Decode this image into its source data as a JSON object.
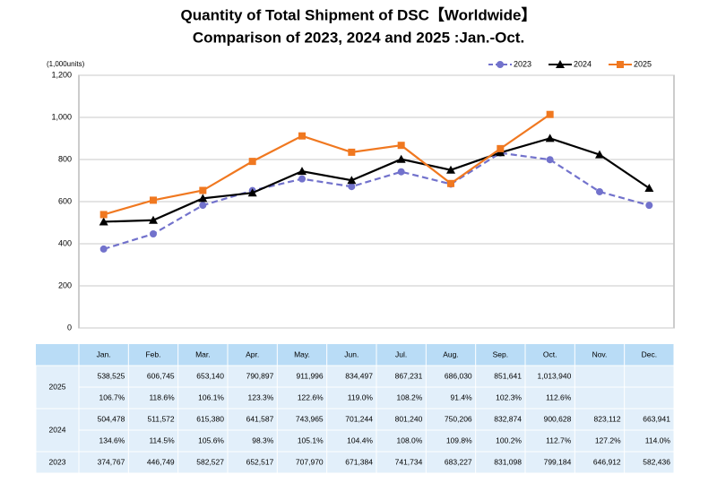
{
  "chart_data": {
    "type": "line",
    "title": "Quantity of Total Shipment of DSC【Worldwide】",
    "subtitle": "Comparison of 2023, 2024 and 2025 :Jan.-Oct.",
    "y_label": "(1,000units)",
    "categories": [
      "Jan.",
      "Feb.",
      "Mar.",
      "Apr.",
      "May.",
      "Jun.",
      "Jul.",
      "Aug.",
      "Sep.",
      "Oct.",
      "Nov.",
      "Dec."
    ],
    "ylim": [
      0,
      1200
    ],
    "yticks": [
      0,
      200,
      400,
      600,
      800,
      {
        "value": 1000,
        "label": "1,000"
      },
      {
        "value": 1200,
        "label": "1,200"
      }
    ],
    "grid": true,
    "legend": "top-right",
    "series": [
      {
        "name": "2023",
        "color": "#7272cc",
        "dash": true,
        "marker": "circle",
        "values": [
          374.767,
          446.749,
          582.527,
          652.517,
          707.97,
          671.384,
          741.734,
          683.227,
          831.098,
          799.184,
          646.912,
          582.436
        ],
        "value_labels": [
          "374,767",
          "446,749",
          "582,527",
          "652,517",
          "707,970",
          "671,384",
          "741,734",
          "683,227",
          "831,098",
          "799,184",
          "646,912",
          "582,436"
        ]
      },
      {
        "name": "2024",
        "color": "#000000",
        "dash": false,
        "marker": "triangle",
        "values": [
          504.478,
          511.572,
          615.38,
          641.587,
          743.965,
          701.244,
          801.24,
          750.206,
          832.874,
          900.628,
          823.112,
          663.941
        ],
        "value_labels": [
          "504,478",
          "511,572",
          "615,380",
          "641,587",
          "743,965",
          "701,244",
          "801,240",
          "750,206",
          "832,874",
          "900,628",
          "823,112",
          "663,941"
        ],
        "growth": [
          "134.6%",
          "114.5%",
          "105.6%",
          "98.3%",
          "105.1%",
          "104.4%",
          "108.0%",
          "109.8%",
          "100.2%",
          "112.7%",
          "127.2%",
          "114.0%"
        ]
      },
      {
        "name": "2025",
        "color": "#f07820",
        "dash": false,
        "marker": "square",
        "values": [
          538.525,
          606.745,
          653.14,
          790.897,
          911.996,
          834.497,
          867.231,
          686.03,
          851.641,
          1013.94,
          null,
          null
        ],
        "value_labels": [
          "538,525",
          "606,745",
          "653,140",
          "790,897",
          "911,996",
          "834,497",
          "867,231",
          "686,030",
          "851,641",
          "1,013,940",
          null,
          null
        ],
        "growth": [
          "106.7%",
          "118.6%",
          "106.1%",
          "123.3%",
          "122.6%",
          "119.0%",
          "108.2%",
          "91.4%",
          "102.3%",
          "112.6%",
          null,
          null
        ]
      }
    ]
  }
}
